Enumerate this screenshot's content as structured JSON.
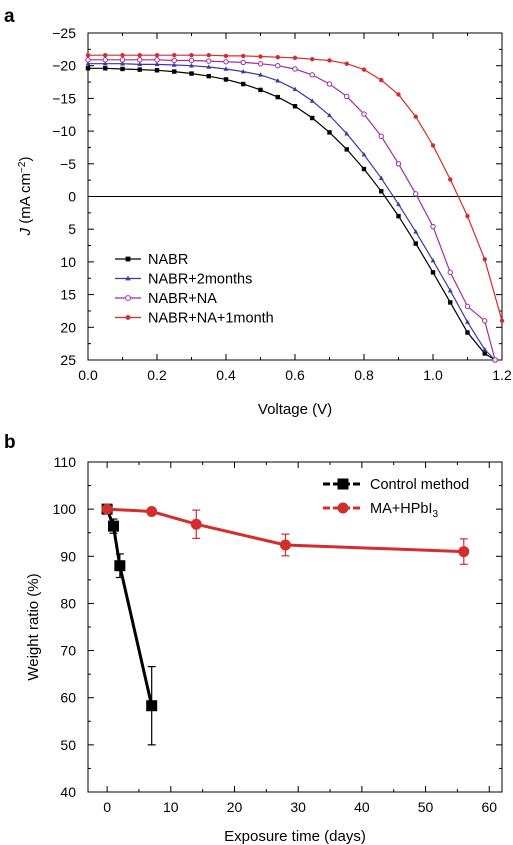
{
  "chart_data": [
    {
      "panel_label": "a",
      "type": "line",
      "xlabel": "Voltage (V)",
      "ylabel_main": "J",
      "ylabel_rest": " (mA cm",
      "ylabel_sup": "−2",
      "ylabel_end": ")",
      "xlim": [
        0.0,
        1.2
      ],
      "ylim": [
        -25,
        25
      ],
      "y_inverted": true,
      "xticks": [
        "0.0",
        "0.2",
        "0.4",
        "0.6",
        "0.8",
        "1.0",
        "1.2"
      ],
      "yticks": [
        "−25",
        "−20",
        "−15",
        "−10",
        "−5",
        "0",
        "5",
        "10",
        "15",
        "20",
        "25"
      ],
      "legend_position": "bottom-left",
      "series": [
        {
          "name": "NABR",
          "color": "#000000",
          "marker": "square",
          "x": [
            0.0,
            0.05,
            0.1,
            0.15,
            0.2,
            0.25,
            0.3,
            0.35,
            0.4,
            0.45,
            0.5,
            0.55,
            0.6,
            0.65,
            0.7,
            0.75,
            0.8,
            0.85,
            0.9,
            0.95,
            1.0,
            1.05,
            1.1,
            1.15,
            1.18
          ],
          "y": [
            -19.6,
            -19.6,
            -19.5,
            -19.4,
            -19.3,
            -19.1,
            -18.8,
            -18.4,
            -17.9,
            -17.2,
            -16.3,
            -15.2,
            -13.8,
            -12.0,
            -9.8,
            -7.2,
            -4.2,
            -0.8,
            3.0,
            7.2,
            11.6,
            16.2,
            20.8,
            24.0,
            25.0
          ]
        },
        {
          "name": "NABR+2months",
          "color": "#3a3c9c",
          "marker": "triangle",
          "x": [
            0.0,
            0.05,
            0.1,
            0.15,
            0.2,
            0.25,
            0.3,
            0.35,
            0.4,
            0.45,
            0.5,
            0.55,
            0.6,
            0.65,
            0.7,
            0.75,
            0.8,
            0.85,
            0.9,
            0.95,
            1.0,
            1.05,
            1.1,
            1.15,
            1.18
          ],
          "y": [
            -20.3,
            -20.3,
            -20.3,
            -20.2,
            -20.2,
            -20.1,
            -20.0,
            -19.8,
            -19.5,
            -19.1,
            -18.6,
            -17.7,
            -16.4,
            -14.6,
            -12.4,
            -9.6,
            -6.4,
            -2.8,
            1.2,
            5.4,
            9.8,
            14.4,
            19.2,
            23.4,
            25.0
          ]
        },
        {
          "name": "NABR+NA",
          "color": "#a02ca0",
          "marker": "circle-open",
          "x": [
            0.0,
            0.05,
            0.1,
            0.15,
            0.2,
            0.25,
            0.3,
            0.35,
            0.4,
            0.45,
            0.5,
            0.55,
            0.6,
            0.65,
            0.7,
            0.75,
            0.8,
            0.85,
            0.9,
            0.95,
            1.0,
            1.05,
            1.1,
            1.15,
            1.18
          ],
          "y": [
            -20.9,
            -20.9,
            -20.9,
            -20.9,
            -20.9,
            -20.8,
            -20.8,
            -20.7,
            -20.6,
            -20.5,
            -20.3,
            -20.0,
            -19.5,
            -18.6,
            -17.2,
            -15.3,
            -12.6,
            -9.2,
            -5.0,
            -0.4,
            4.6,
            11.6,
            16.8,
            19.0,
            25.0
          ]
        },
        {
          "name": "NABR+NA+1month",
          "color": "#d42d2d",
          "marker": "circle",
          "x": [
            0.0,
            0.05,
            0.1,
            0.15,
            0.2,
            0.25,
            0.3,
            0.35,
            0.4,
            0.45,
            0.5,
            0.55,
            0.6,
            0.65,
            0.7,
            0.75,
            0.8,
            0.85,
            0.9,
            0.95,
            1.0,
            1.05,
            1.1,
            1.15,
            1.2
          ],
          "y": [
            -21.6,
            -21.6,
            -21.6,
            -21.6,
            -21.6,
            -21.6,
            -21.6,
            -21.6,
            -21.5,
            -21.5,
            -21.4,
            -21.3,
            -21.2,
            -21.0,
            -20.8,
            -20.3,
            -19.4,
            -17.8,
            -15.6,
            -12.2,
            -7.8,
            -2.6,
            3.0,
            9.6,
            19.0
          ]
        }
      ]
    },
    {
      "panel_label": "b",
      "type": "line",
      "xlabel": "Exposure time (days)",
      "ylabel": "Weight ratio (%)",
      "xlim": [
        -3,
        62
      ],
      "ylim": [
        40,
        110
      ],
      "xticks": [
        "0",
        "10",
        "20",
        "30",
        "40",
        "50",
        "60"
      ],
      "yticks": [
        "40",
        "50",
        "60",
        "70",
        "80",
        "90",
        "100",
        "110"
      ],
      "legend_position": "top-right",
      "series": [
        {
          "name": "Control method",
          "color": "#000000",
          "marker": "square",
          "x": [
            0,
            1,
            2,
            7
          ],
          "y": [
            100,
            96.4,
            88,
            58.3
          ],
          "err": [
            0,
            1.5,
            2.5,
            8.3
          ]
        },
        {
          "name_main": "MA+HPbI",
          "name_sub": "3",
          "color": "#d42d2d",
          "marker": "circle",
          "x": [
            0,
            7,
            14,
            28,
            56
          ],
          "y": [
            100,
            99.5,
            96.8,
            92.4,
            91.0
          ],
          "err": [
            0,
            0,
            3.0,
            2.3,
            2.7
          ]
        }
      ]
    }
  ]
}
